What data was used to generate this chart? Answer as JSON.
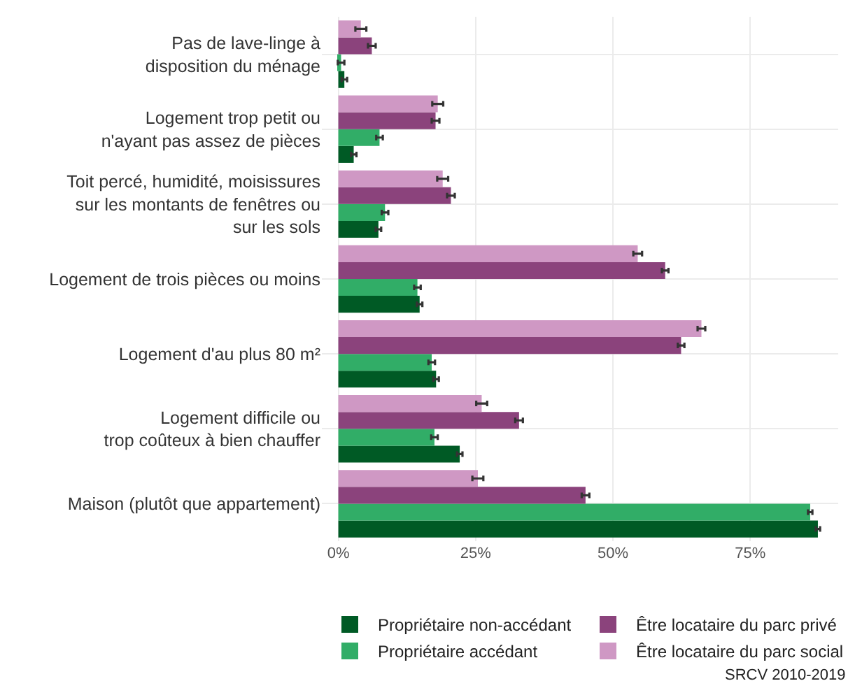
{
  "chart_data": {
    "type": "bar",
    "orientation": "horizontal",
    "categories": [
      "Pas de lave-linge à\ndisposition du ménage",
      "Logement trop petit ou\nn'ayant pas assez de pièces",
      "Toit percé, humidité, moisissures\nsur les montants de fenêtres ou\nsur les sols",
      "Logement de trois pièces ou moins",
      "Logement d'au plus 80 m²",
      "Logement difficile ou\ntrop coûteux à bien chauffer",
      "Maison (plutôt que appartement)"
    ],
    "series": [
      {
        "name": "Propriétaire non-accédant",
        "color": "#005a25",
        "values": [
          1.1,
          2.8,
          7.3,
          14.8,
          17.8,
          22.1,
          87.3
        ],
        "errors": [
          0.5,
          0.5,
          0.5,
          0.5,
          0.5,
          0.5,
          0.4
        ]
      },
      {
        "name": "Propriétaire accédant",
        "color": "#31ad67",
        "values": [
          0.5,
          7.5,
          8.5,
          14.4,
          17.0,
          17.5,
          85.9
        ],
        "errors": [
          0.6,
          0.6,
          0.6,
          0.6,
          0.6,
          0.6,
          0.4
        ]
      },
      {
        "name": "Être locataire du parc privé",
        "color": "#8b437c",
        "values": [
          6.1,
          17.7,
          20.5,
          59.5,
          62.4,
          32.9,
          45.0
        ],
        "errors": [
          0.7,
          0.7,
          0.7,
          0.6,
          0.6,
          0.7,
          0.7
        ]
      },
      {
        "name": "Être locataire du parc social",
        "color": "#cf98c4",
        "values": [
          4.1,
          18.1,
          19.0,
          54.5,
          66.1,
          26.1,
          25.4
        ],
        "errors": [
          1.0,
          1.0,
          1.0,
          0.8,
          0.7,
          1.0,
          1.0
        ]
      }
    ],
    "xlim": [
      -3,
      91
    ],
    "xticks": [
      {
        "value": 0,
        "label": "0%"
      },
      {
        "value": 25,
        "label": "25%"
      },
      {
        "value": 50,
        "label": "50%"
      },
      {
        "value": 75,
        "label": "75%"
      }
    ],
    "grid": true,
    "legend": "bottom",
    "annotations": [
      "SRCV 2010-2019"
    ]
  }
}
